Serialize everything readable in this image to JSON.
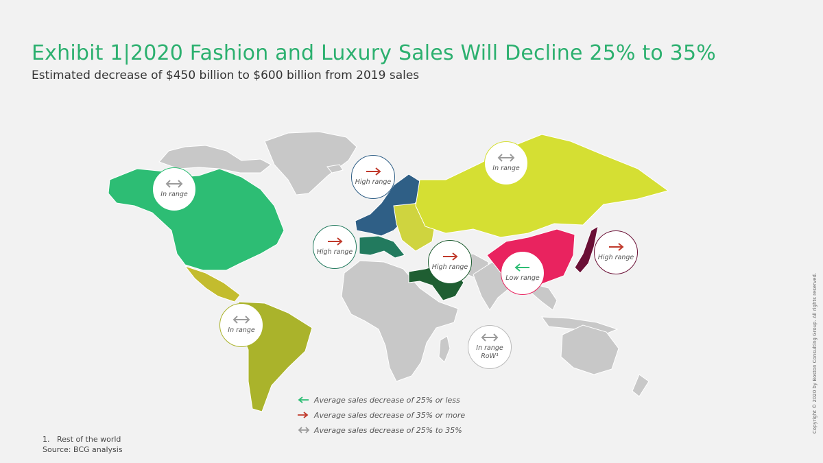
{
  "title": "Exhibit 1|2020 Fashion and Luxury Sales Will Decline 25% to 35%",
  "subtitle": "Estimated decrease of $450 billion to $600 billion from 2019 sales",
  "colors": {
    "north_america": "#2dbd74",
    "latin_america": "#aab32b",
    "central_america": "#c3bc2e",
    "northern_europe": "#2f5f86",
    "western_europe": "#227a5e",
    "eastern_europe": "#cfd43f",
    "russia": "#d5df33",
    "middle_east": "#1f5e32",
    "china": "#e9235f",
    "japan": "#6a0f35",
    "rest_of_world": "#c8c8c8",
    "low_arrow": "#2dbd74",
    "high_arrow": "#c0392b",
    "range_arrow": "#9b9b9b"
  },
  "bubbles": [
    {
      "region": "North America",
      "label": "In range",
      "icon": "double-arrow-icon"
    },
    {
      "region": "Northern Europe",
      "label": "High range",
      "icon": "right-arrow-icon"
    },
    {
      "region": "Russia",
      "label": "In range",
      "icon": "double-arrow-icon"
    },
    {
      "region": "Western Europe",
      "label": "High range",
      "icon": "right-arrow-icon"
    },
    {
      "region": "Middle East",
      "label": "High range",
      "icon": "right-arrow-icon"
    },
    {
      "region": "China",
      "label": "Low range",
      "icon": "left-arrow-icon"
    },
    {
      "region": "Japan",
      "label": "High range",
      "icon": "right-arrow-icon"
    },
    {
      "region": "Latin America",
      "label": "In range",
      "icon": "double-arrow-icon"
    },
    {
      "region": "Rest of World",
      "label": "In range",
      "label2": "RoW¹",
      "icon": "double-arrow-icon"
    }
  ],
  "legend": [
    {
      "icon": "left-arrow-icon",
      "text": "Average sales decrease of 25% or less"
    },
    {
      "icon": "right-arrow-icon",
      "text": "Average sales decrease of 35% or more"
    },
    {
      "icon": "double-arrow-icon",
      "text": "Average sales decrease of 25% to 35%"
    }
  ],
  "footnote": "1.   Rest of the world",
  "source": "Source: BCG analysis",
  "copyright": "Copyright © 2020 by Boston Consulting Group. All rights reserved."
}
